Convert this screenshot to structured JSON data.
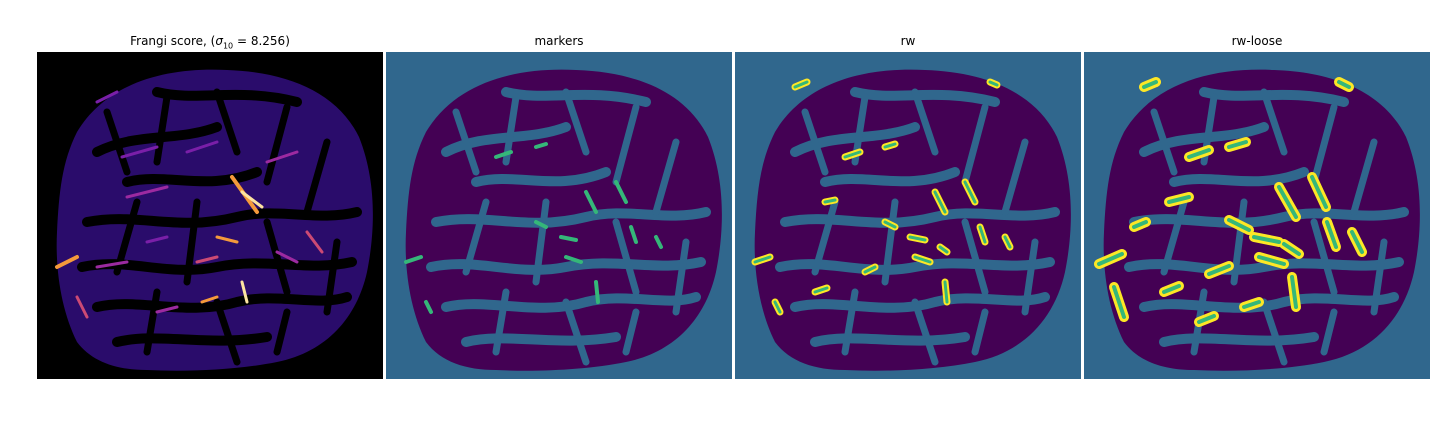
{
  "panels": [
    {
      "title_prefix": "Frangi score, (",
      "sigma": "σ",
      "sigma_sub": "10",
      "title_suffix": " = 8.256)",
      "colormap": "magma",
      "background": "#000000"
    },
    {
      "title": "markers",
      "colormap": "viridis",
      "background": "#30678d"
    },
    {
      "title": "rw",
      "colormap": "viridis",
      "background": "#30678d"
    },
    {
      "title": "rw-loose",
      "colormap": "viridis",
      "background": "#30678d"
    }
  ],
  "colors": {
    "magma_dark": "#000004",
    "magma_purple": "#2f0b6e",
    "magma_violet": "#6a0fa8",
    "magma_orange": "#f59a3b",
    "magma_yellow": "#fde4a0",
    "viridis_purple": "#440154",
    "viridis_blue": "#30678d",
    "viridis_green": "#35b779",
    "viridis_yellow": "#fde725"
  }
}
